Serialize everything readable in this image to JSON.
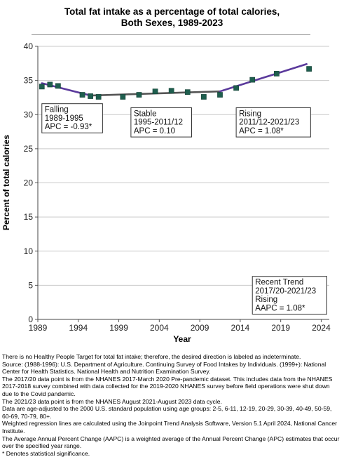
{
  "title_line1": "Total fat intake as a percentage of total calories,",
  "title_line2": "Both Sexes,  1989-2023",
  "chart_data": {
    "type": "scatter",
    "title": "Total fat intake as a percentage of total calories, Both Sexes, 1989-2023",
    "xlabel": "Year",
    "ylabel": "Percent of total calories",
    "xlim": [
      1989,
      2025
    ],
    "ylim": [
      0,
      40
    ],
    "xticks": [
      1989,
      1994,
      1999,
      2004,
      2009,
      2014,
      2019,
      2024
    ],
    "yticks": [
      0,
      5,
      10,
      15,
      20,
      25,
      30,
      35,
      40
    ],
    "grid": true,
    "marker_color": "#1e5e4e",
    "trend_color": "#5b3a9c",
    "points": [
      {
        "x": 1989.5,
        "y": 34.1
      },
      {
        "x": 1990.5,
        "y": 34.4
      },
      {
        "x": 1991.5,
        "y": 34.2
      },
      {
        "x": 1994.5,
        "y": 32.9
      },
      {
        "x": 1995.5,
        "y": 32.7
      },
      {
        "x": 1996.5,
        "y": 32.6
      },
      {
        "x": 1999.5,
        "y": 32.6
      },
      {
        "x": 2001.5,
        "y": 32.9
      },
      {
        "x": 2003.5,
        "y": 33.4
      },
      {
        "x": 2005.5,
        "y": 33.5
      },
      {
        "x": 2007.5,
        "y": 33.3
      },
      {
        "x": 2009.5,
        "y": 32.6
      },
      {
        "x": 2011.5,
        "y": 32.9
      },
      {
        "x": 2013.5,
        "y": 33.9
      },
      {
        "x": 2015.5,
        "y": 35.1
      },
      {
        "x": 2018.5,
        "y": 36.0
      },
      {
        "x": 2022.5,
        "y": 36.7
      }
    ],
    "trend": [
      {
        "x": 1989.5,
        "y": 34.6
      },
      {
        "x": 1995.5,
        "y": 32.8
      },
      {
        "x": 2011.5,
        "y": 33.4
      },
      {
        "x": 2022.2,
        "y": 37.4
      }
    ],
    "annotations": [
      {
        "lines": [
          "Falling",
          "1989-1995",
          "APC = -0.93*"
        ],
        "x": 1989.5,
        "y": 31.6
      },
      {
        "lines": [
          "Stable",
          "1995-2011/12",
          "APC =  0.10"
        ],
        "x": 2000.5,
        "y": 31.0
      },
      {
        "lines": [
          "Rising",
          "2011/12-2021/23",
          "APC =  1.08*"
        ],
        "x": 2013.5,
        "y": 31.0
      },
      {
        "lines": [
          "Recent Trend",
          "2017/20-2021/23",
          "Rising",
          "AAPC =  1.08*"
        ],
        "x": 2015.5,
        "y": 6.3
      }
    ]
  },
  "notes": [
    "There is no Healthy People Target for total fat intake; therefore, the desired direction is labeled as indeterminate.",
    "Source: (1988-1996): U.S. Department of Agriculture. Continuing Survey of Food Intakes by Individuals. (1999+): National Center for Health Statistics. National Health and Nutrition Examination Survey.",
    "The 2017/20 data point is from the NHANES 2017-March 2020 Pre-pandemic dataset. This includes data from the NHANES 2017-2018 survey combined with data collected for the 2019-2020 NHANES survey before field operations were shut down due to the Covid pandemic.",
    "The 2021/23 data point is from the NHANES August 2021-August 2023 data cycle.",
    "Data are age-adjusted to the 2000 U.S. standard population using age groups: 2-5, 6-11, 12-19, 20-29, 30-39, 40-49, 50-59, 60-69, 70-79, 80+.",
    "Weighted regression lines are calculated using the Joinpoint Trend Analysis Software, Version 5.1 April 2024, National Cancer Institute.",
    "The Average Annual Percent Change (AAPC) is a weighted average of the Annual Percent Change (APC) estimates that occur over the specified year range.",
    "* Denotes statistical significance."
  ]
}
